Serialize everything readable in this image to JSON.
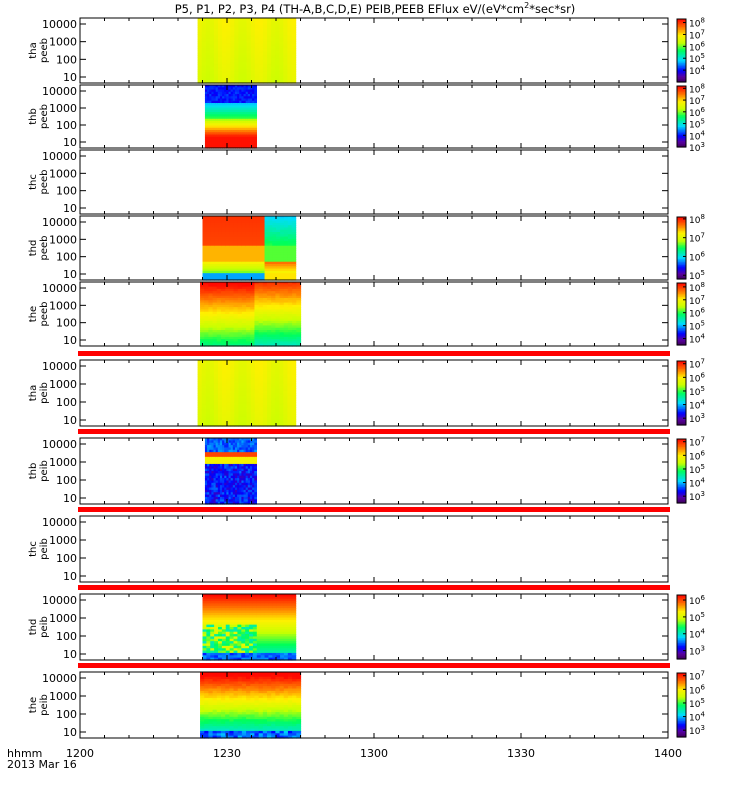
{
  "chart_data": {
    "type": "heatmap",
    "title": "P5, P1, P2, P3, P4 (TH-A,B,C,D,E) PEIB,PEEB EFlux eV/(eV*cm",
    "title_sup": "2",
    "title_end": "*sec*sr)",
    "x_axis_label": "hhmm",
    "date_label": "2013 Mar 16",
    "x_ticks": [
      "1200",
      "1230",
      "1300",
      "1330",
      "1400"
    ],
    "xlim_minutes": [
      0,
      120
    ],
    "y_scale": "log",
    "colorscale": "rainbow",
    "panels": [
      {
        "probe": "tha",
        "product": "peeb",
        "y_ticks": [
          "10000",
          "1000",
          "100",
          "10"
        ],
        "cb_exp": [
          8,
          7,
          6,
          5,
          4
        ],
        "cb_exp_range": [
          3,
          8.3
        ],
        "data_start": 24,
        "data_end": 44,
        "pattern": "ion_yellow",
        "separator": false
      },
      {
        "probe": "thb",
        "product": "peeb",
        "y_ticks": [
          "10000",
          "1000",
          "100",
          "10"
        ],
        "cb_exp": [
          8,
          7,
          6,
          5,
          4,
          3
        ],
        "cb_exp_range": [
          3,
          8.2
        ],
        "data_start": 25.5,
        "data_end": 36,
        "pattern": "electron_b",
        "separator": false
      },
      {
        "probe": "thc",
        "product": "peeb",
        "y_ticks": [
          "10000",
          "1000",
          "100",
          "10"
        ],
        "cb_exp": [],
        "cb_exp_range": null,
        "data_start": null,
        "data_end": null,
        "pattern": "empty",
        "separator": false
      },
      {
        "probe": "thd",
        "product": "peeb",
        "y_ticks": [
          "10000",
          "1000",
          "100",
          "10"
        ],
        "cb_exp": [
          8,
          7,
          6,
          5
        ],
        "cb_exp_range": [
          4.8,
          8.1
        ],
        "data_start": 25,
        "data_end": 44,
        "pattern": "electron_d",
        "separator": false
      },
      {
        "probe": "the",
        "product": "peeb",
        "y_ticks": [
          "10000",
          "1000",
          "100",
          "10"
        ],
        "cb_exp": [
          8,
          7,
          6,
          5,
          4
        ],
        "cb_exp_range": [
          3.5,
          8.3
        ],
        "data_start": 24.5,
        "data_end": 45,
        "pattern": "electron_e",
        "separator": true
      },
      {
        "probe": "tha",
        "product": "peib",
        "y_ticks": [
          "10000",
          "1000",
          "100",
          "10"
        ],
        "cb_exp": [
          7,
          6,
          5,
          4,
          3
        ],
        "cb_exp_range": [
          2.5,
          7.2
        ],
        "data_start": 24,
        "data_end": 44,
        "pattern": "ion_yellow",
        "separator": true
      },
      {
        "probe": "thb",
        "product": "peib",
        "y_ticks": [
          "10000",
          "1000",
          "100",
          "10"
        ],
        "cb_exp": [
          7,
          6,
          5,
          4,
          3
        ],
        "cb_exp_range": [
          2.5,
          7.2
        ],
        "data_start": 25.5,
        "data_end": 36,
        "pattern": "ion_b",
        "separator": true
      },
      {
        "probe": "thc",
        "product": "peib",
        "y_ticks": [
          "10000",
          "1000",
          "100",
          "10"
        ],
        "cb_exp": [],
        "cb_exp_range": null,
        "data_start": null,
        "data_end": null,
        "pattern": "empty",
        "separator": true
      },
      {
        "probe": "thd",
        "product": "peib",
        "y_ticks": [
          "10000",
          "1000",
          "100",
          "10"
        ],
        "cb_exp": [
          6,
          5,
          4,
          3
        ],
        "cb_exp_range": [
          2.5,
          6.3
        ],
        "data_start": 25,
        "data_end": 44,
        "pattern": "ion_d",
        "separator": true
      },
      {
        "probe": "the",
        "product": "peib",
        "y_ticks": [
          "10000",
          "1000",
          "100",
          "10"
        ],
        "cb_exp": [
          7,
          6,
          5,
          4,
          3
        ],
        "cb_exp_range": [
          2.5,
          7.2
        ],
        "data_start": 24.5,
        "data_end": 45,
        "pattern": "ion_e",
        "separator": false
      }
    ]
  }
}
